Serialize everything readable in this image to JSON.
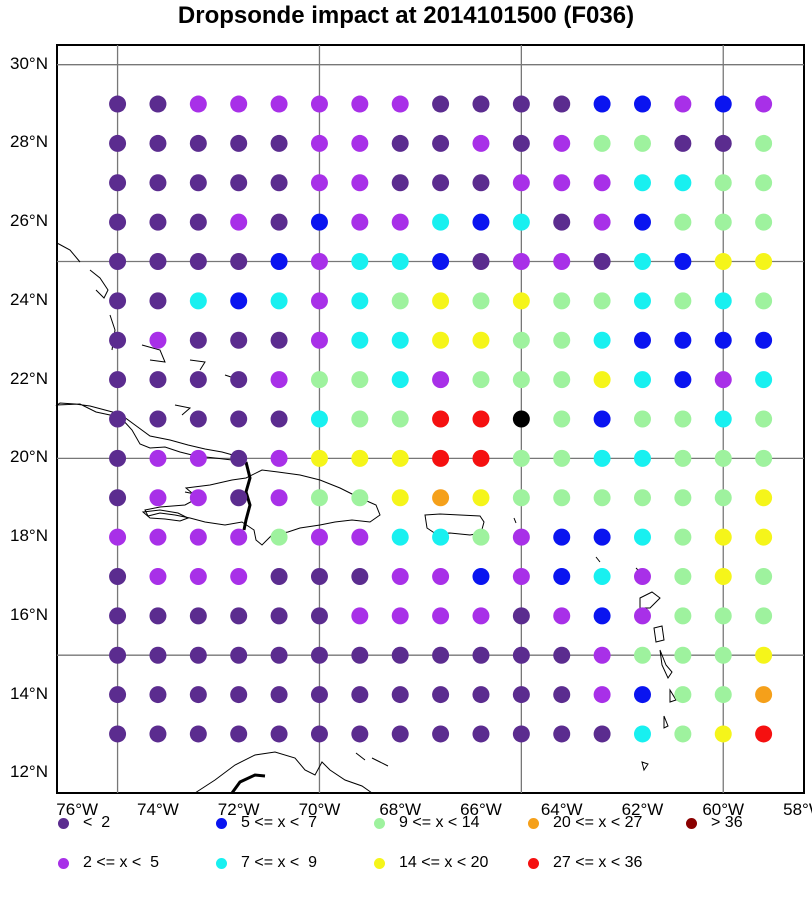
{
  "title": "Dropsonde impact at 2014101500 (F036)",
  "map": {
    "lon_min": -76.5,
    "lon_max": -58.0,
    "lat_min": 11.5,
    "lat_max": 30.5,
    "gridlines_lon": [
      -75,
      -70,
      -65,
      -60
    ],
    "gridlines_lat": [
      15,
      20,
      25,
      30
    ],
    "lon_ticks": [
      "76°W",
      "74°W",
      "72°W",
      "70°W",
      "68°W",
      "66°W",
      "64°W",
      "62°W",
      "60°W",
      "58°W"
    ],
    "lat_ticks": [
      "12°N",
      "14°N",
      "16°N",
      "18°N",
      "20°N",
      "22°N",
      "24°N",
      "26°N",
      "28°N",
      "30°N"
    ]
  },
  "legend": [
    {
      "key": "0",
      "label": "<  2",
      "color": "#5b2c8f"
    },
    {
      "key": "1",
      "label": "2 <= x <  5",
      "color": "#a830e8"
    },
    {
      "key": "2",
      "label": "5 <= x <  7",
      "color": "#0a14f0"
    },
    {
      "key": "3",
      "label": "7 <= x <  9",
      "color": "#18f0f0"
    },
    {
      "key": "4",
      "label": "9 <= x < 14",
      "color": "#9ef29e"
    },
    {
      "key": "5",
      "label": "14 <= x < 20",
      "color": "#f5f51a"
    },
    {
      "key": "6",
      "label": "20 <= x < 27",
      "color": "#f5a01a"
    },
    {
      "key": "7",
      "label": "27 <= x < 36",
      "color": "#f51010"
    },
    {
      "key": "8",
      "label": "> 36",
      "color": "#8a0000"
    }
  ],
  "grid": {
    "lons": [
      -75,
      -74,
      -73,
      -72,
      -71,
      -70,
      -69,
      -68,
      -67,
      -66,
      -65,
      -64,
      -63,
      -62,
      -61,
      -60,
      -59
    ],
    "lats": [
      29,
      28,
      27,
      26,
      25,
      24,
      23,
      22,
      21,
      20,
      19,
      18,
      17,
      16,
      15,
      14,
      13
    ],
    "categories": [
      "00111111000022121",
      "00000110010144004",
      "00000110001113344",
      "00010211323012444",
      "00002133201103255",
      "00323134545443434",
      "01000133554432222",
      "00001443144453213",
      "00000344779424434",
      "01101555774433444",
      "01101445654444445",
      "11114113341223455",
      "01110001121231454",
      "00000011110121444",
      "00000000000014445",
      "00000000000012446",
      "00000000000003457"
    ]
  }
}
